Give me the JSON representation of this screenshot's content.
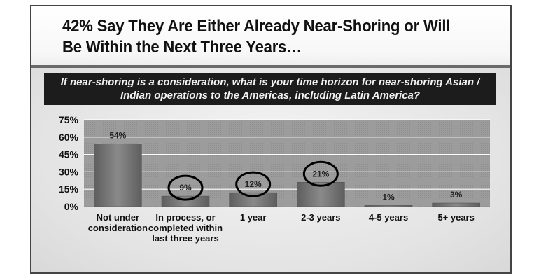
{
  "header": {
    "title": "42% Say They Are Either Already Near-Shoring or Will Be Within the Next Three Years…"
  },
  "question": {
    "text": "If near-shoring is a consideration, what is your time horizon for near-shoring Asian / Indian operations to the Americas, including Latin America?"
  },
  "chart_data": {
    "type": "bar",
    "title": "",
    "xlabel": "",
    "ylabel": "",
    "categories": [
      "Not under consideration",
      "In process, or completed within last three years",
      "1 year",
      "2-3 years",
      "4-5 years",
      "5+ years"
    ],
    "values": [
      54,
      9,
      12,
      21,
      1,
      3
    ],
    "value_labels": [
      "54%",
      "9%",
      "12%",
      "21%",
      "1%",
      "3%"
    ],
    "highlighted": [
      "In process, or completed within last three years",
      "1 year",
      "2-3 years"
    ],
    "ylim": [
      0,
      75
    ],
    "yticks": [
      0,
      15,
      30,
      45,
      60,
      75
    ],
    "ytick_labels": [
      "0%",
      "15%",
      "30%",
      "45%",
      "60%",
      "75%"
    ],
    "grid": true,
    "legend": "none",
    "colors": {
      "bar": "#7a7a7a",
      "plot_area": "#9a9a9a",
      "gridline": "#ffffff",
      "circle": "#000000"
    }
  }
}
